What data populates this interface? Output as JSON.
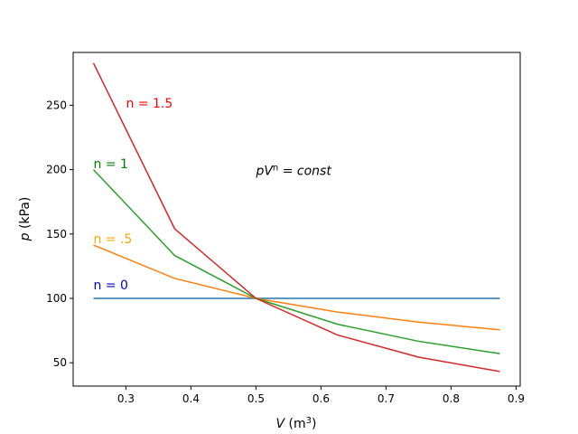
{
  "chart_data": {
    "type": "line",
    "title": "",
    "xlabel": {
      "base": "V",
      "unit_open": " (m",
      "unit_sup": "3",
      "unit_close": ")"
    },
    "ylabel": {
      "base": "p",
      "unit": " (kPa)"
    },
    "xlim": [
      0.2188,
      0.9063
    ],
    "ylim": [
      31.9,
      291.0
    ],
    "xticks": [
      0.3,
      0.4,
      0.5,
      0.6,
      0.7,
      0.8,
      0.9
    ],
    "xtick_labels": [
      "0.3",
      "0.4",
      "0.5",
      "0.6",
      "0.7",
      "0.8",
      "0.9"
    ],
    "yticks": [
      50,
      100,
      150,
      200,
      250
    ],
    "ytick_labels": [
      "50",
      "100",
      "150",
      "200",
      "250"
    ],
    "x": [
      0.25,
      0.375,
      0.5,
      0.625,
      0.75,
      0.875
    ],
    "series": [
      {
        "label": "n = 0",
        "color": "#1f77b4",
        "values": [
          100,
          100,
          100,
          100,
          100,
          100
        ]
      },
      {
        "label": "n = .5",
        "color": "#ff7f0e",
        "values": [
          141.4,
          115.5,
          100,
          89.4,
          81.6,
          75.6
        ]
      },
      {
        "label": "n = 1",
        "color": "#2ca02c",
        "values": [
          200,
          133.3,
          100,
          80,
          66.7,
          57.1
        ]
      },
      {
        "label": "n = 1.5",
        "color": "#d62728",
        "values": [
          282.8,
          154.0,
          100,
          71.6,
          54.4,
          43.2
        ]
      }
    ],
    "annotations": [
      {
        "text": "n = 0",
        "x": 0.25,
        "y": 107,
        "color": "#0000cc"
      },
      {
        "text": "n = .5",
        "x": 0.25,
        "y": 143,
        "color": "#ffa500"
      },
      {
        "text": "n = 1",
        "x": 0.25,
        "y": 201,
        "color": "#008000"
      },
      {
        "text": "n = 1.5",
        "x": 0.3,
        "y": 248,
        "color": "#ff0000"
      }
    ],
    "equation": {
      "base": "pV",
      "sup": "n",
      "rest": " = const",
      "x": 0.5,
      "y": 196
    },
    "grid": false,
    "legend": "none"
  }
}
